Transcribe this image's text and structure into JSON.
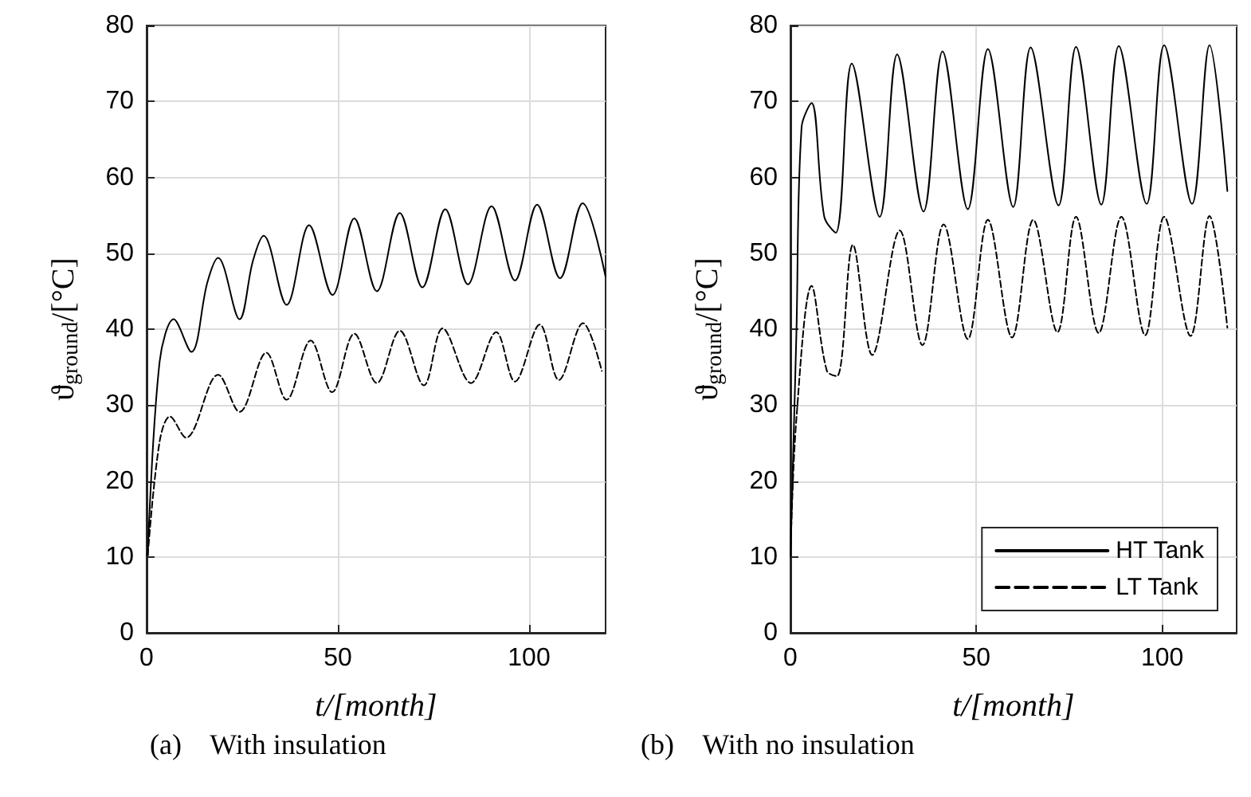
{
  "chart_data": [
    {
      "type": "line",
      "xlabel": "t/[month]",
      "ylabel": "ϑ$_{ground}$/[°C]",
      "annotations": [
        "(a)    With insulation"
      ],
      "xlim": [
        0,
        120
      ],
      "ylim": [
        0,
        80
      ],
      "xticks": [
        0,
        50,
        100
      ],
      "yticks": [
        0,
        10,
        20,
        30,
        40,
        50,
        60,
        70,
        80
      ],
      "grid": true,
      "legend": false,
      "series": [
        {
          "color": "#000000",
          "line_style": "solid",
          "x": [
            0.3,
            3.4,
            7.1,
            11.7,
            15.9,
            18.7,
            24.3,
            27.8,
            30.6,
            36.6,
            42.5,
            48.6,
            54.3,
            60.2,
            66.2,
            72.1,
            78.1,
            84.0,
            90.2,
            96.3,
            102.1,
            108.1,
            114.0,
            120
          ],
          "values": [
            10.2,
            35.7,
            41.3,
            37.0,
            46.2,
            49.4,
            41.3,
            49.0,
            52.3,
            43.2,
            53.7,
            44.5,
            54.6,
            45.0,
            55.3,
            45.5,
            55.8,
            45.9,
            56.2,
            46.4,
            56.4,
            46.7,
            56.6,
            46.9
          ]
        },
        {
          "color": "#000000",
          "line_style": "dashed",
          "x": [
            0.3,
            3.4,
            6.1,
            10.3,
            18.7,
            24.3,
            31.3,
            36.6,
            42.9,
            48.5,
            54.3,
            60.2,
            66.2,
            72.5,
            77.4,
            84.8,
            91.4,
            96.3,
            102.8,
            107.8,
            114.1,
            119
          ],
          "values": [
            10.2,
            25.2,
            28.5,
            25.7,
            34.0,
            29.1,
            36.9,
            30.7,
            38.5,
            31.7,
            39.4,
            32.9,
            39.8,
            32.6,
            40.1,
            32.9,
            39.6,
            33.1,
            40.6,
            33.3,
            40.8,
            34.5
          ]
        }
      ]
    },
    {
      "type": "line",
      "xlabel": "t/[month]",
      "ylabel": "ϑ$_{ground}$/[°C]",
      "annotations": [
        "(b)    With no insulation"
      ],
      "xlim": [
        0,
        120
      ],
      "ylim": [
        0,
        80
      ],
      "xticks": [
        0,
        50,
        100
      ],
      "yticks": [
        0,
        10,
        20,
        30,
        40,
        50,
        60,
        70,
        80
      ],
      "grid": true,
      "legend": "bottom right",
      "series": [
        {
          "name": "HT Tank",
          "color": "#000000",
          "line_style": "solid",
          "x": [
            0,
            1.6,
            3.0,
            5.7,
            9.1,
            12.2,
            16.5,
            24.0,
            28.7,
            35.8,
            40.9,
            47.7,
            53.1,
            59.9,
            64.6,
            72.1,
            76.8,
            83.6,
            88.3,
            95.8,
            100.5,
            108.0,
            112.7,
            117.5
          ],
          "values": [
            10.1,
            39.4,
            66.6,
            69.8,
            54.8,
            52.7,
            75.0,
            54.8,
            76.2,
            55.5,
            76.6,
            55.8,
            76.9,
            56.1,
            77.1,
            56.3,
            77.2,
            56.4,
            77.3,
            56.5,
            77.4,
            56.5,
            77.4,
            58.2
          ]
        },
        {
          "name": "LT Tank",
          "color": "#000000",
          "line_style": "dashed",
          "x": [
            0,
            1.6,
            5.7,
            9.8,
            12.5,
            16.8,
            22.0,
            29.4,
            35.5,
            41.2,
            47.7,
            53.1,
            59.6,
            65.3,
            71.8,
            76.8,
            82.9,
            89.0,
            95.4,
            100.5,
            107.6,
            112.7,
            117.5
          ],
          "values": [
            10.0,
            28.2,
            45.7,
            34.5,
            33.8,
            51.1,
            36.6,
            53.0,
            37.9,
            53.8,
            38.7,
            54.4,
            38.9,
            54.4,
            39.6,
            54.8,
            39.5,
            54.8,
            39.2,
            54.8,
            39.1,
            54.9,
            40.2
          ]
        }
      ]
    }
  ]
}
